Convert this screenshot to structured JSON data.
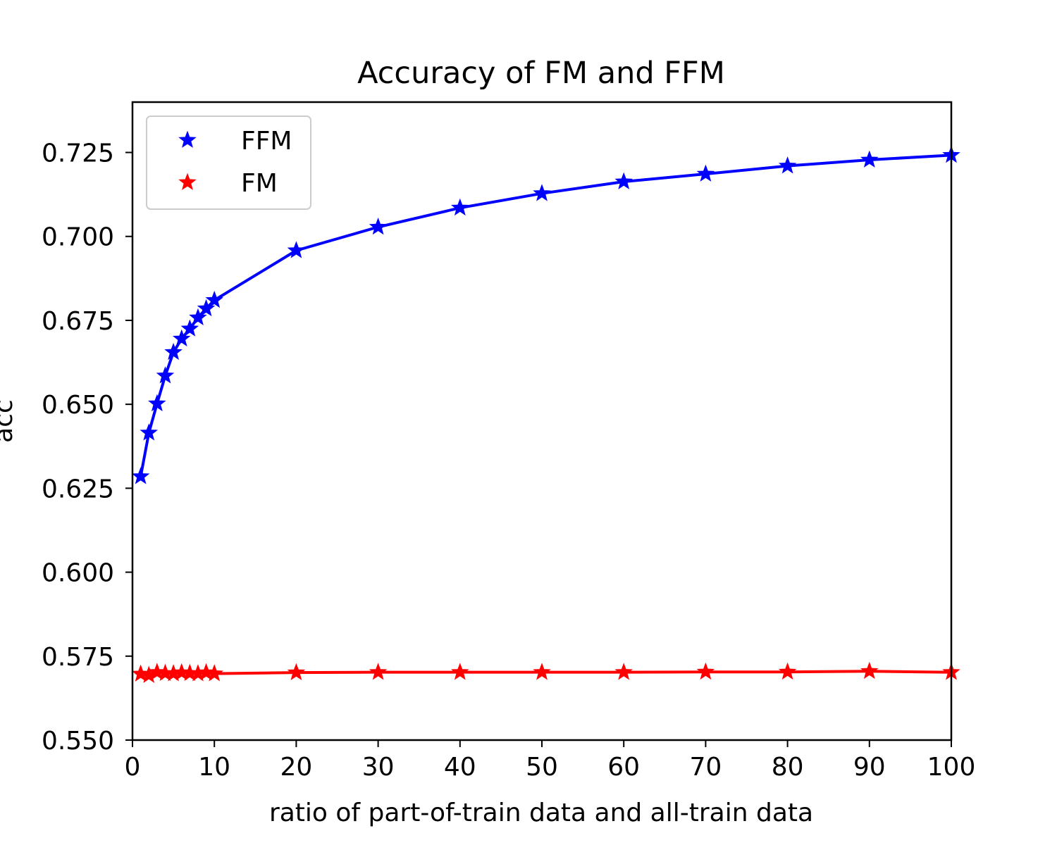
{
  "chart_data": {
    "type": "line",
    "title": "Accuracy of FM and FFM",
    "xlabel": "ratio of part-of-train data and all-train data",
    "ylabel": "acc",
    "xlim": [
      0,
      100
    ],
    "ylim": [
      0.55,
      0.74
    ],
    "xticks": [
      0,
      10,
      20,
      30,
      40,
      50,
      60,
      70,
      80,
      90,
      100
    ],
    "xtick_labels": [
      "0",
      "10",
      "20",
      "30",
      "40",
      "50",
      "60",
      "70",
      "80",
      "90",
      "100"
    ],
    "yticks": [
      0.55,
      0.575,
      0.6,
      0.625,
      0.65,
      0.675,
      0.7,
      0.725
    ],
    "ytick_labels": [
      "0.550",
      "0.575",
      "0.600",
      "0.625",
      "0.650",
      "0.675",
      "0.700",
      "0.725"
    ],
    "grid": false,
    "legend_position": "top-left",
    "marker": "star",
    "x": [
      1,
      2,
      3,
      4,
      5,
      6,
      7,
      8,
      9,
      10,
      20,
      30,
      40,
      50,
      60,
      70,
      80,
      90,
      100
    ],
    "series": [
      {
        "name": "FFM",
        "color": "#0000ff",
        "values": [
          0.6285,
          0.6415,
          0.6502,
          0.6585,
          0.6655,
          0.6695,
          0.6725,
          0.6758,
          0.6785,
          0.681,
          0.6958,
          0.7028,
          0.7085,
          0.7128,
          0.7163,
          0.7186,
          0.721,
          0.7228,
          0.7242
        ]
      },
      {
        "name": "FM",
        "color": "#ff0000",
        "values": [
          0.5697,
          0.5693,
          0.5702,
          0.5699,
          0.5698,
          0.5701,
          0.5699,
          0.5698,
          0.5701,
          0.5698,
          0.5701,
          0.5702,
          0.5702,
          0.5702,
          0.5702,
          0.5703,
          0.5703,
          0.5705,
          0.5702
        ]
      }
    ]
  }
}
